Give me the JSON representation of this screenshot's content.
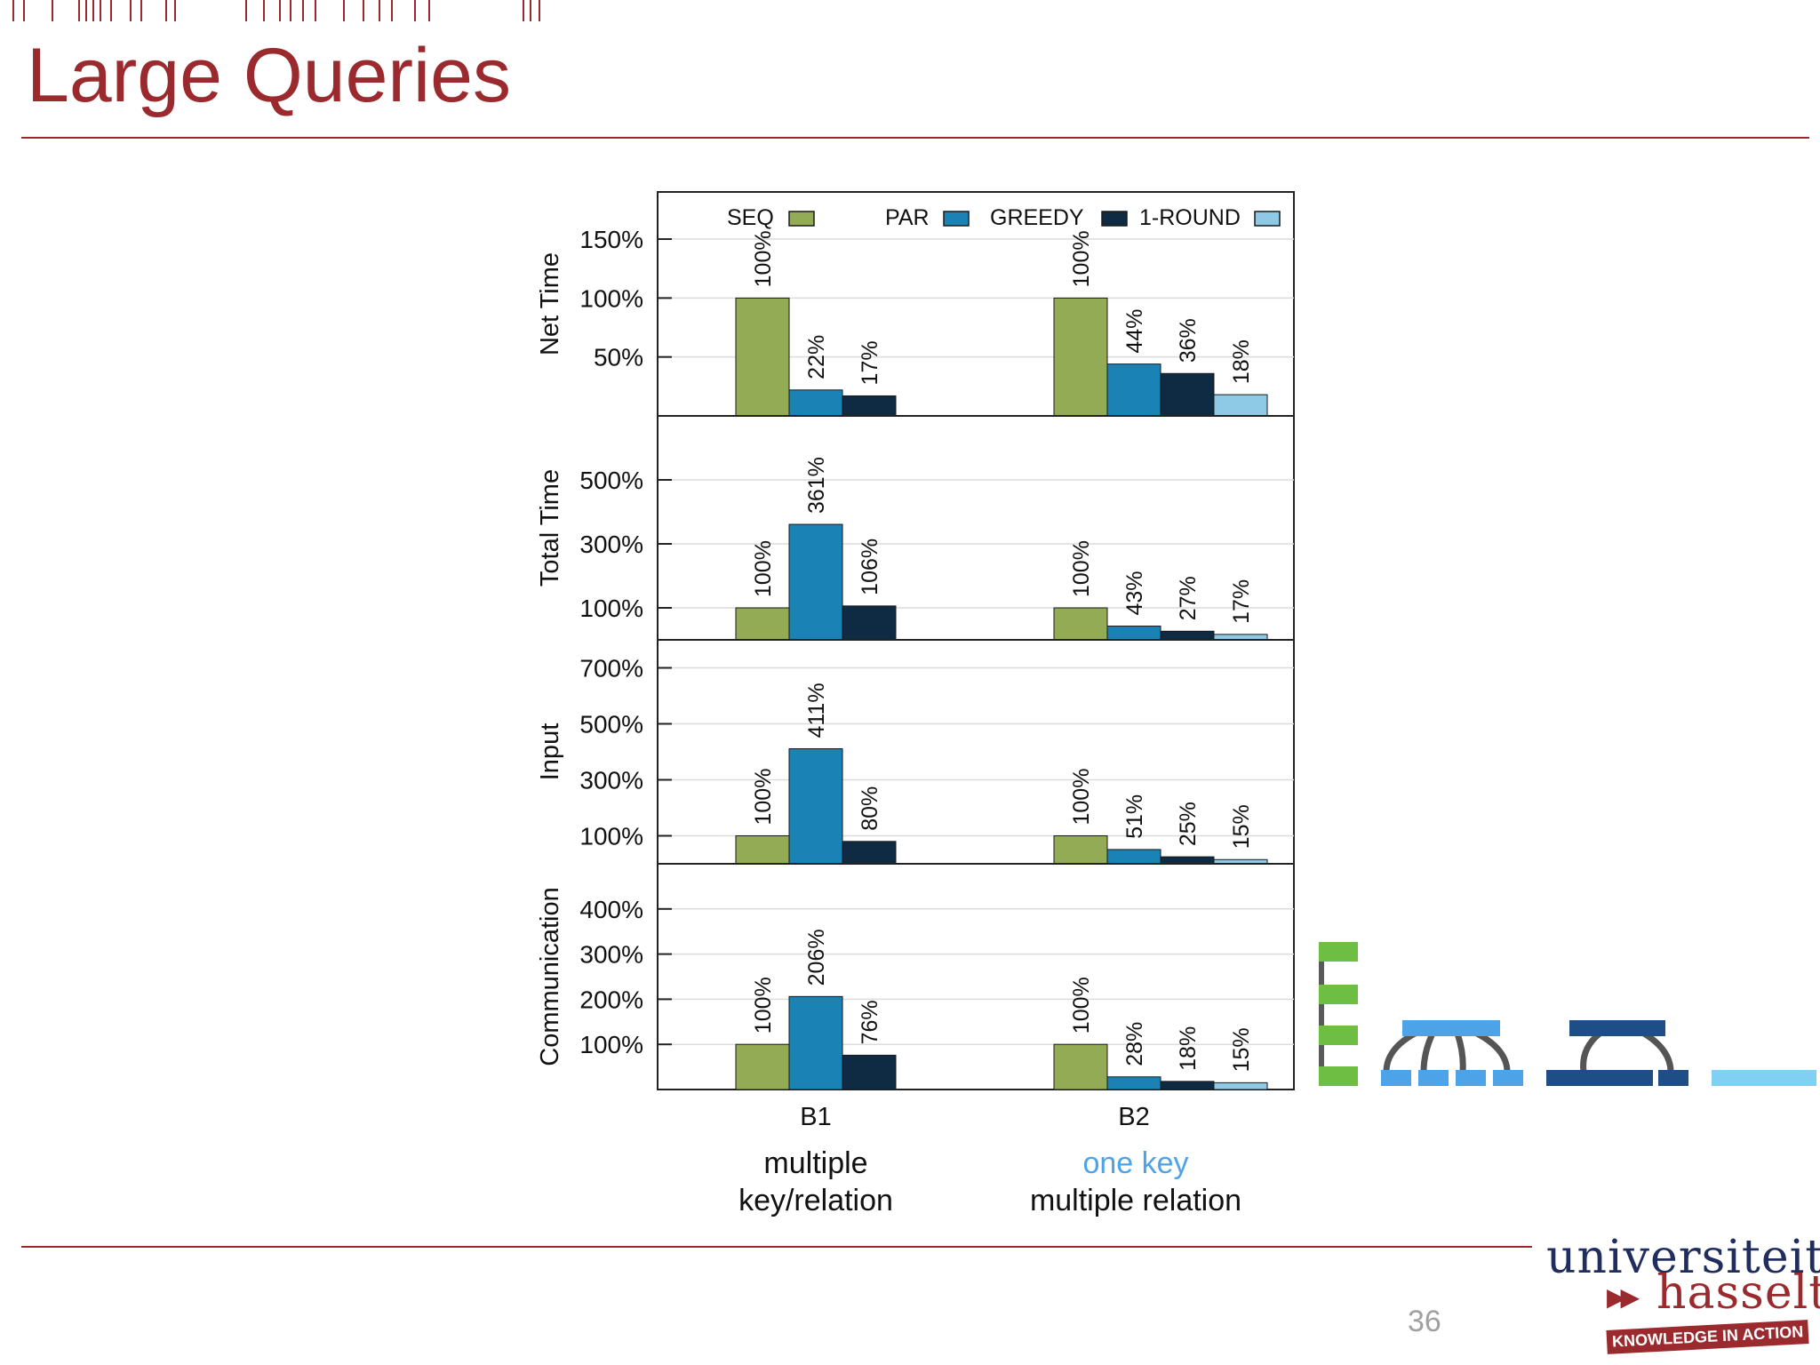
{
  "slide": {
    "title": "Large Queries",
    "page_number": "36"
  },
  "colors": {
    "accent": "#9a2a2e",
    "seq": "#93ab55",
    "par": "#1a82b4",
    "greedy": "#0f2b44",
    "oneround": "#8ecae6",
    "onekey": "#4da3e8"
  },
  "chart_data": {
    "type": "bar",
    "categories": [
      "B1",
      "B2"
    ],
    "legend": [
      "SEQ",
      "PAR",
      "GREEDY",
      "1-ROUND"
    ],
    "legend_position": "top",
    "panels": [
      {
        "ylabel": "Net Time",
        "ticks": [
          {
            "v": 150,
            "label": "150%"
          },
          {
            "v": 100,
            "label": "100%"
          },
          {
            "v": 50,
            "label": "50%"
          }
        ],
        "ylim": [
          0,
          190
        ],
        "series": [
          {
            "name": "SEQ",
            "values": [
              100,
              100
            ],
            "labels": [
              "100%",
              "100%"
            ]
          },
          {
            "name": "PAR",
            "values": [
              22,
              44
            ],
            "labels": [
              "22%",
              "44%"
            ]
          },
          {
            "name": "GREEDY",
            "values": [
              17,
              36
            ],
            "labels": [
              "17%",
              "36%"
            ]
          },
          {
            "name": "1-ROUND",
            "values": [
              null,
              18
            ],
            "labels": [
              null,
              "18%"
            ]
          }
        ]
      },
      {
        "ylabel": "Total Time",
        "ticks": [
          {
            "v": 500,
            "label": "500%"
          },
          {
            "v": 300,
            "label": "300%"
          },
          {
            "v": 100,
            "label": "100%"
          }
        ],
        "ylim": [
          0,
          700
        ],
        "series": [
          {
            "name": "SEQ",
            "values": [
              100,
              100
            ],
            "labels": [
              "100%",
              "100%"
            ]
          },
          {
            "name": "PAR",
            "values": [
              361,
              43
            ],
            "labels": [
              "361%",
              "43%"
            ]
          },
          {
            "name": "GREEDY",
            "values": [
              106,
              27
            ],
            "labels": [
              "106%",
              "27%"
            ]
          },
          {
            "name": "1-ROUND",
            "values": [
              null,
              17
            ],
            "labels": [
              null,
              "17%"
            ]
          }
        ]
      },
      {
        "ylabel": "Input",
        "ticks": [
          {
            "v": 700,
            "label": "700%"
          },
          {
            "v": 500,
            "label": "500%"
          },
          {
            "v": 300,
            "label": "300%"
          },
          {
            "v": 100,
            "label": "100%"
          }
        ],
        "ylim": [
          0,
          800
        ],
        "series": [
          {
            "name": "SEQ",
            "values": [
              100,
              100
            ],
            "labels": [
              "100%",
              "100%"
            ]
          },
          {
            "name": "PAR",
            "values": [
              411,
              51
            ],
            "labels": [
              "411%",
              "51%"
            ]
          },
          {
            "name": "GREEDY",
            "values": [
              80,
              25
            ],
            "labels": [
              "80%",
              "25%"
            ]
          },
          {
            "name": "1-ROUND",
            "values": [
              null,
              15
            ],
            "labels": [
              null,
              "15%"
            ]
          }
        ]
      },
      {
        "ylabel": "Communication",
        "ticks": [
          {
            "v": 400,
            "label": "400%"
          },
          {
            "v": 300,
            "label": "300%"
          },
          {
            "v": 200,
            "label": "200%"
          },
          {
            "v": 100,
            "label": "100%"
          }
        ],
        "ylim": [
          0,
          500
        ],
        "series": [
          {
            "name": "SEQ",
            "values": [
              100,
              100
            ],
            "labels": [
              "100%",
              "100%"
            ]
          },
          {
            "name": "PAR",
            "values": [
              206,
              28
            ],
            "labels": [
              "206%",
              "28%"
            ]
          },
          {
            "name": "GREEDY",
            "values": [
              76,
              18
            ],
            "labels": [
              "76%",
              "18%"
            ]
          },
          {
            "name": "1-ROUND",
            "values": [
              null,
              15
            ],
            "labels": [
              null,
              "15%"
            ]
          }
        ]
      }
    ]
  },
  "captions": {
    "b1_line1": "multiple",
    "b1_line2": "key/relation",
    "b2_line1": "one key",
    "b2_line2": "multiple relation"
  },
  "logo": {
    "line1": "universiteit",
    "line2": "hasselt",
    "tagline": "KNOWLEDGE IN ACTION"
  }
}
